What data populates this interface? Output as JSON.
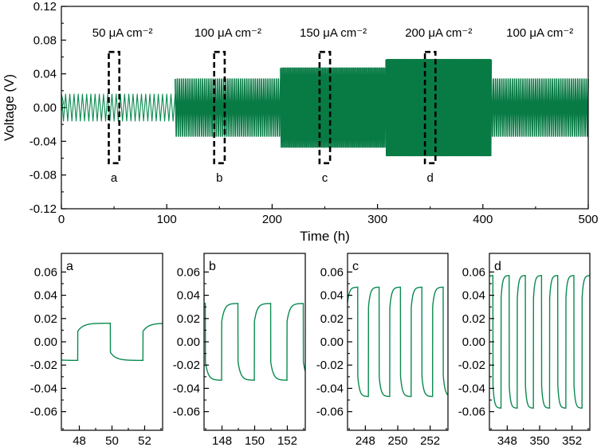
{
  "colors": {
    "trace": "#0a8a4f",
    "trace_dense": "#087b45",
    "axes": "#000000",
    "box": "#000000"
  },
  "chart_data": [
    {
      "id": "main",
      "type": "line",
      "title": "",
      "xlabel": "Time (h)",
      "ylabel": "Voltage (V)",
      "xlim": [
        0,
        500
      ],
      "ylim": [
        -0.12,
        0.12
      ],
      "xticks": [
        0,
        100,
        200,
        300,
        400,
        500
      ],
      "xtick_labels": [
        "0",
        "100",
        "200",
        "300",
        "400",
        "500"
      ],
      "yticks": [
        -0.12,
        -0.08,
        -0.04,
        0.0,
        0.04,
        0.08,
        0.12
      ],
      "ytick_labels": [
        "-0.12",
        "-0.08",
        "-0.04",
        "0.00",
        "0.04",
        "0.08",
        "0.12"
      ],
      "segments": [
        {
          "label": "50 μA cm⁻²",
          "t_start": 0,
          "t_end": 108,
          "amplitude_v": 0.016,
          "cycle_h": 4
        },
        {
          "label": "100 μA cm⁻²",
          "t_start": 108,
          "t_end": 208,
          "amplitude_v": 0.034,
          "cycle_h": 2
        },
        {
          "label": "150 μA cm⁻²",
          "t_start": 208,
          "t_end": 308,
          "amplitude_v": 0.047,
          "cycle_h": 1.33
        },
        {
          "label": "200 μA cm⁻²",
          "t_start": 308,
          "t_end": 408,
          "amplitude_v": 0.057,
          "cycle_h": 1
        },
        {
          "label": "100 μA cm⁻²",
          "t_start": 408,
          "t_end": 500,
          "amplitude_v": 0.034,
          "cycle_h": 2
        }
      ],
      "highlight_boxes": [
        {
          "letter": "a",
          "t_start": 45,
          "t_end": 55,
          "v_min": -0.066,
          "v_max": 0.066
        },
        {
          "letter": "b",
          "t_start": 145,
          "t_end": 155,
          "v_min": -0.066,
          "v_max": 0.066
        },
        {
          "letter": "c",
          "t_start": 245,
          "t_end": 255,
          "v_min": -0.066,
          "v_max": 0.066
        },
        {
          "letter": "d",
          "t_start": 345,
          "t_end": 355,
          "v_min": -0.066,
          "v_max": 0.066
        }
      ]
    },
    {
      "id": "a",
      "type": "line",
      "panel_label": "a",
      "xlim": [
        46.9,
        53.1
      ],
      "ylim": [
        -0.076,
        0.076
      ],
      "xticks": [
        48,
        50,
        52
      ],
      "xtick_labels": [
        "48",
        "50",
        "52"
      ],
      "yticks": [
        -0.06,
        -0.04,
        -0.02,
        0.0,
        0.02,
        0.04,
        0.06
      ],
      "ytick_labels": [
        "-0.06",
        "-0.04",
        "-0.02",
        "0.00",
        "0.02",
        "0.04",
        "0.06"
      ],
      "wave": {
        "amplitude_v": 0.016,
        "period_h": 4,
        "charge_start_h": 47.9,
        "half_period_h": 2,
        "rise_v": 0.007
      }
    },
    {
      "id": "b",
      "type": "line",
      "panel_label": "b",
      "xlim": [
        146.9,
        153.1
      ],
      "ylim": [
        -0.076,
        0.076
      ],
      "xticks": [
        148,
        150,
        152
      ],
      "xtick_labels": [
        "148",
        "150",
        "152"
      ],
      "yticks": [
        -0.06,
        -0.04,
        -0.02,
        0.0,
        0.02,
        0.04,
        0.06
      ],
      "ytick_labels": [
        "-0.06",
        "-0.04",
        "-0.02",
        "0.00",
        "0.02",
        "0.04",
        "0.06"
      ],
      "wave": {
        "amplitude_v": 0.033,
        "period_h": 2,
        "charge_start_h": 147.98,
        "half_period_h": 1,
        "rise_v": 0.016
      }
    },
    {
      "id": "c",
      "type": "line",
      "panel_label": "c",
      "xlim": [
        246.9,
        253.1
      ],
      "ylim": [
        -0.076,
        0.076
      ],
      "xticks": [
        248,
        250,
        252
      ],
      "xtick_labels": [
        "248",
        "250",
        "252"
      ],
      "yticks": [
        -0.06,
        -0.04,
        -0.02,
        0.0,
        0.02,
        0.04,
        0.06
      ],
      "ytick_labels": [
        "-0.06",
        "-0.04",
        "-0.02",
        "0.00",
        "0.02",
        "0.04",
        "0.06"
      ],
      "wave": {
        "amplitude_v": 0.047,
        "period_h": 1.32,
        "charge_start_h": 246.87,
        "half_period_h": 0.66,
        "rise_v": 0.018
      }
    },
    {
      "id": "d",
      "type": "line",
      "panel_label": "d",
      "xlim": [
        346.9,
        353.1
      ],
      "ylim": [
        -0.076,
        0.076
      ],
      "xticks": [
        348,
        350,
        352
      ],
      "xtick_labels": [
        "348",
        "350",
        "352"
      ],
      "yticks": [
        -0.06,
        -0.04,
        -0.02,
        0.0,
        0.02,
        0.04,
        0.06
      ],
      "ytick_labels": [
        "-0.06",
        "-0.04",
        "-0.02",
        "0.00",
        "0.02",
        "0.04",
        "0.06"
      ],
      "wave": {
        "amplitude_v": 0.057,
        "period_h": 1.0,
        "charge_start_h": 346.62,
        "half_period_h": 0.5,
        "rise_v": 0.02
      }
    }
  ]
}
